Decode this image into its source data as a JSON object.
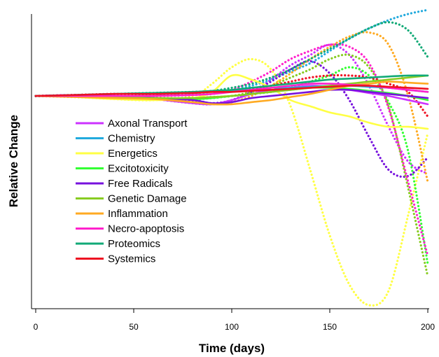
{
  "chart_data": {
    "type": "line",
    "title": "",
    "xlabel": "Time (days)",
    "ylabel": "Relative Change",
    "xlim": [
      0,
      200
    ],
    "ylim": [
      -1,
      0.4
    ],
    "xticks": [
      0,
      50,
      100,
      150,
      200
    ],
    "y_tick_labels_shown": false,
    "grid": false,
    "legend_position": "left",
    "x": [
      0,
      20,
      40,
      60,
      80,
      90,
      100,
      110,
      120,
      130,
      140,
      150,
      160,
      170,
      180,
      190,
      200
    ],
    "series": [
      {
        "name": "Axonal Transport",
        "color": "#cc33ff",
        "solid": [
          0,
          0.005,
          0.0,
          -0.015,
          -0.035,
          -0.04,
          -0.02,
          0.01,
          0.03,
          0.04,
          0.05,
          0.045,
          0.03,
          0.015,
          0.0,
          -0.02,
          -0.04
        ],
        "dotted": [
          0,
          0.005,
          0.0,
          -0.015,
          -0.035,
          -0.04,
          -0.02,
          0.02,
          0.08,
          0.15,
          0.2,
          0.25,
          0.2,
          0.05,
          -0.15,
          -0.32,
          -0.38
        ]
      },
      {
        "name": "Chemistry",
        "color": "#22aadd",
        "solid": [
          0,
          0.005,
          0.01,
          0.01,
          0.015,
          0.02,
          0.025,
          0.03,
          0.035,
          0.04,
          0.045,
          0.05,
          0.05,
          0.045,
          0.04,
          0.03,
          0.02
        ],
        "dotted": [
          0,
          0.005,
          0.01,
          0.01,
          0.015,
          0.02,
          0.03,
          0.05,
          0.08,
          0.12,
          0.16,
          0.22,
          0.28,
          0.33,
          0.37,
          0.4,
          0.42
        ]
      },
      {
        "name": "Energetics",
        "color": "#ffff44",
        "solid": [
          0,
          -0.005,
          -0.015,
          -0.02,
          -0.01,
          0.02,
          0.1,
          0.08,
          0.04,
          -0.02,
          -0.05,
          -0.08,
          -0.1,
          -0.13,
          -0.15,
          -0.15,
          -0.16
        ],
        "dotted": [
          0,
          -0.005,
          -0.015,
          -0.02,
          0.0,
          0.06,
          0.14,
          0.18,
          0.13,
          -0.05,
          -0.36,
          -0.68,
          -0.92,
          -1.02,
          -0.95,
          -0.58,
          -0.18
        ]
      },
      {
        "name": "Excitotoxicity",
        "color": "#33ff33",
        "solid": [
          0,
          0.0,
          -0.005,
          -0.01,
          -0.015,
          -0.01,
          0.0,
          0.01,
          0.02,
          0.03,
          0.04,
          0.04,
          0.035,
          0.025,
          0.015,
          0.0,
          -0.02
        ],
        "dotted": [
          0,
          0.0,
          -0.005,
          -0.01,
          -0.015,
          -0.01,
          0.0,
          0.01,
          0.02,
          0.04,
          0.07,
          0.1,
          0.14,
          0.1,
          -0.03,
          -0.27,
          -0.82
        ]
      },
      {
        "name": "Free Radicals",
        "color": "#7711dd",
        "solid": [
          0,
          0.0,
          -0.005,
          -0.01,
          -0.02,
          -0.035,
          -0.03,
          -0.01,
          0.0,
          0.01,
          0.02,
          0.03,
          0.03,
          0.02,
          0.01,
          0.0,
          -0.01
        ],
        "dotted": [
          0,
          0.0,
          -0.005,
          -0.01,
          -0.02,
          -0.035,
          -0.02,
          0.02,
          0.07,
          0.13,
          0.17,
          0.11,
          -0.02,
          -0.2,
          -0.36,
          -0.39,
          -0.3
        ]
      },
      {
        "name": "Genetic Damage",
        "color": "#88cc22",
        "solid": [
          0,
          0.0,
          -0.005,
          -0.01,
          -0.01,
          -0.005,
          0.0,
          0.01,
          0.02,
          0.03,
          0.04,
          0.05,
          0.06,
          0.07,
          0.08,
          0.09,
          0.1
        ],
        "dotted": [
          0,
          0.0,
          -0.005,
          -0.01,
          -0.01,
          -0.005,
          0.0,
          0.02,
          0.05,
          0.09,
          0.13,
          0.18,
          0.2,
          0.14,
          -0.05,
          -0.45,
          -0.88
        ]
      },
      {
        "name": "Inflammation",
        "color": "#ffaa22",
        "solid": [
          0,
          -0.005,
          -0.01,
          -0.015,
          -0.03,
          -0.04,
          -0.04,
          -0.03,
          -0.02,
          -0.005,
          0.01,
          0.03,
          0.05,
          0.06,
          0.07,
          0.065,
          0.06
        ],
        "dotted": [
          0,
          -0.005,
          -0.01,
          -0.015,
          -0.03,
          -0.04,
          -0.03,
          0.0,
          0.05,
          0.11,
          0.18,
          0.24,
          0.29,
          0.31,
          0.25,
          0.0,
          -0.42
        ]
      },
      {
        "name": "Necro-apoptosis",
        "color": "#ff22cc",
        "solid": [
          0,
          0.0,
          0.0,
          0.0,
          0.005,
          0.01,
          0.02,
          0.03,
          0.04,
          0.05,
          0.06,
          0.06,
          0.055,
          0.05,
          0.04,
          0.03,
          0.02
        ],
        "dotted": [
          0,
          0.0,
          0.0,
          0.0,
          0.005,
          0.01,
          0.03,
          0.07,
          0.12,
          0.18,
          0.22,
          0.25,
          0.24,
          0.16,
          -0.06,
          -0.42,
          -0.78
        ]
      },
      {
        "name": "Proteomics",
        "color": "#11aa77",
        "solid": [
          0,
          0.005,
          0.01,
          0.015,
          0.02,
          0.025,
          0.03,
          0.04,
          0.05,
          0.06,
          0.07,
          0.08,
          0.085,
          0.09,
          0.095,
          0.1,
          0.1
        ],
        "dotted": [
          0,
          0.005,
          0.01,
          0.015,
          0.02,
          0.025,
          0.04,
          0.06,
          0.09,
          0.13,
          0.18,
          0.23,
          0.28,
          0.33,
          0.36,
          0.32,
          0.19
        ]
      },
      {
        "name": "Systemics",
        "color": "#ee1122",
        "solid": [
          0,
          0.005,
          0.01,
          0.01,
          0.015,
          0.02,
          0.02,
          0.025,
          0.03,
          0.035,
          0.04,
          0.045,
          0.05,
          0.05,
          0.045,
          0.04,
          0.035
        ],
        "dotted": [
          0,
          0.005,
          0.01,
          0.01,
          0.015,
          0.02,
          0.025,
          0.035,
          0.05,
          0.07,
          0.09,
          0.1,
          0.1,
          0.09,
          0.06,
          0.02,
          -0.1
        ]
      }
    ]
  }
}
